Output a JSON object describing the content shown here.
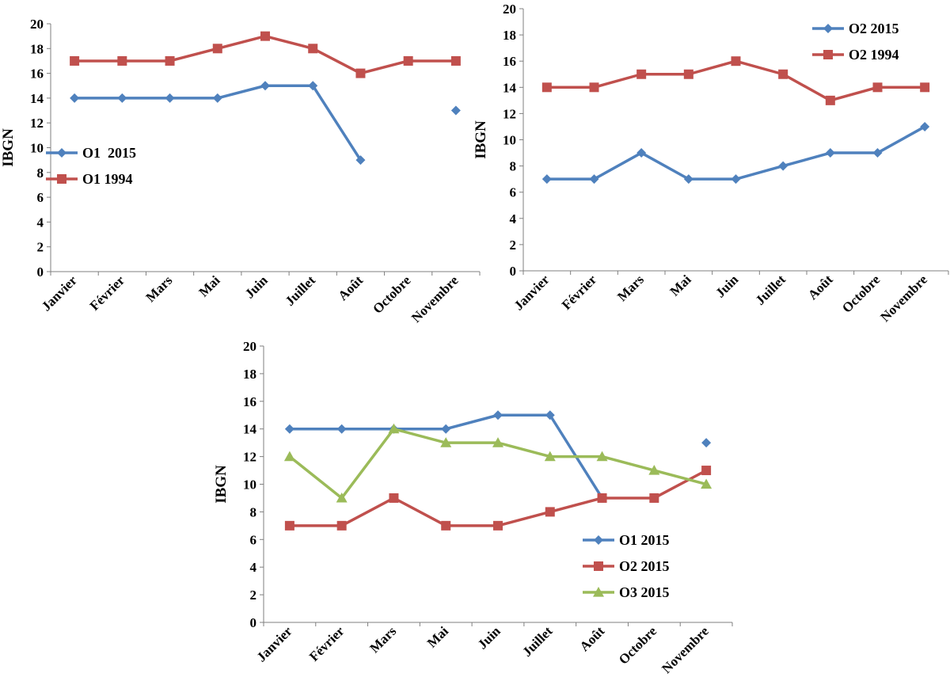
{
  "colors": {
    "blue": "#4F81BD",
    "red": "#C0504D",
    "green": "#9BBB59",
    "axis": "#7f7f7f"
  },
  "chart_data": [
    {
      "type": "line",
      "id": "chart1",
      "title": "",
      "xlabel": "",
      "ylabel": "IBGN",
      "ylim": [
        0,
        20
      ],
      "yticks": [
        "0",
        "2",
        "4",
        "6",
        "8",
        "10",
        "12",
        "14",
        "16",
        "18",
        "20"
      ],
      "categories": [
        "Janvier",
        "Février",
        "Mars",
        "Mai",
        "Juin",
        "Juillet",
        "Août",
        "Octobre",
        "Novembre"
      ],
      "legend_position": "left",
      "series": [
        {
          "name": "O1  2015",
          "color": "#4F81BD",
          "marker": "diamond",
          "values": [
            14,
            14,
            14,
            14,
            15,
            15,
            9,
            null,
            13
          ]
        },
        {
          "name": "O1 1994",
          "color": "#C0504D",
          "marker": "square",
          "values": [
            17,
            17,
            17,
            18,
            19,
            18,
            16,
            17,
            17
          ]
        }
      ]
    },
    {
      "type": "line",
      "id": "chart2",
      "title": "",
      "xlabel": "",
      "ylabel": "IBGN",
      "ylim": [
        0,
        20
      ],
      "yticks": [
        "0",
        "2",
        "4",
        "6",
        "8",
        "10",
        "12",
        "14",
        "16",
        "18",
        "20"
      ],
      "categories": [
        "Janvier",
        "Février",
        "Mars",
        "Mai",
        "Juin",
        "Juillet",
        "Août",
        "Octobre",
        "Novembre"
      ],
      "legend_position": "top-right",
      "series": [
        {
          "name": "O2 2015",
          "color": "#4F81BD",
          "marker": "diamond",
          "values": [
            7,
            7,
            9,
            7,
            7,
            8,
            9,
            9,
            11
          ]
        },
        {
          "name": "O2 1994",
          "color": "#C0504D",
          "marker": "square",
          "values": [
            14,
            14,
            15,
            15,
            16,
            15,
            13,
            14,
            14
          ]
        }
      ]
    },
    {
      "type": "line",
      "id": "chart3",
      "title": "",
      "xlabel": "",
      "ylabel": "IBGN",
      "ylim": [
        0,
        20
      ],
      "yticks": [
        "0",
        "2",
        "4",
        "6",
        "8",
        "10",
        "12",
        "14",
        "16",
        "18",
        "20"
      ],
      "categories": [
        "Janvier",
        "Février",
        "Mars",
        "Mai",
        "Juin",
        "Juillet",
        "Août",
        "Octobre",
        "Novembre"
      ],
      "legend_position": "bottom-right",
      "series": [
        {
          "name": "O1 2015",
          "color": "#4F81BD",
          "marker": "diamond",
          "values": [
            14,
            14,
            14,
            14,
            15,
            15,
            9,
            null,
            13
          ]
        },
        {
          "name": "O2 2015",
          "color": "#C0504D",
          "marker": "square",
          "values": [
            7,
            7,
            9,
            7,
            7,
            8,
            9,
            9,
            11
          ]
        },
        {
          "name": "O3 2015",
          "color": "#9BBB59",
          "marker": "triangle",
          "values": [
            12,
            9,
            14,
            13,
            13,
            12,
            12,
            11,
            10
          ]
        }
      ]
    }
  ]
}
